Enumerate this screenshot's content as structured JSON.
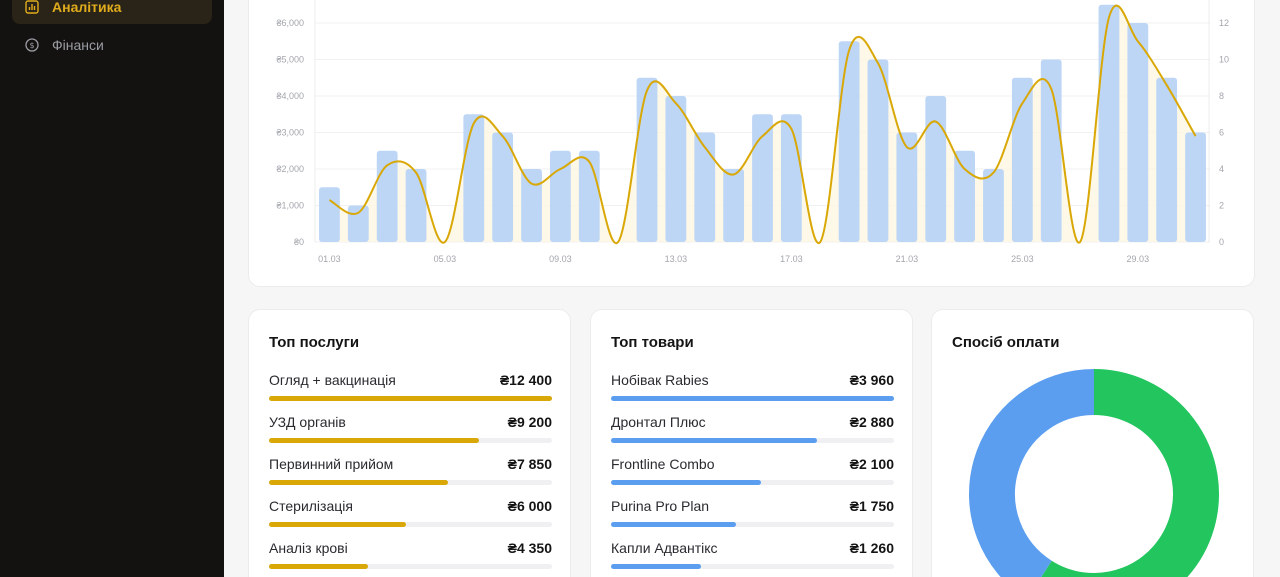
{
  "sidebar": {
    "items": [
      {
        "label": "Аналітика",
        "icon": "bar-chart-icon",
        "active": true
      },
      {
        "label": "Фінанси",
        "icon": "dollar-circle-icon",
        "active": false
      }
    ]
  },
  "colors": {
    "accent": "#e0ac1c",
    "bars": "#b9d4f6",
    "line": "#d9a806",
    "blue": "#5b9ef0",
    "green": "#22c55e"
  },
  "chart_data": [
    {
      "type": "bar",
      "title": "",
      "x": [
        "01.03",
        "02.03",
        "03.03",
        "04.03",
        "05.03",
        "06.03",
        "07.03",
        "08.03",
        "09.03",
        "10.03",
        "11.03",
        "12.03",
        "13.03",
        "14.03",
        "15.03",
        "16.03",
        "17.03",
        "18.03",
        "19.03",
        "20.03",
        "21.03",
        "22.03",
        "23.03",
        "24.03",
        "25.03",
        "26.03",
        "27.03",
        "28.03",
        "29.03",
        "30.03",
        "31.03"
      ],
      "x_tick_labels": [
        "01.03",
        "05.03",
        "09.03",
        "13.03",
        "17.03",
        "21.03",
        "25.03",
        "29.03"
      ],
      "y_ticks_left": [
        "₴0",
        "₴1,000",
        "₴2,000",
        "₴3,000",
        "₴4,000",
        "₴5,000",
        "₴6,000"
      ],
      "y_ticks_right": [
        "0",
        "2",
        "4",
        "6",
        "8",
        "10",
        "12"
      ],
      "ylim_left": [
        0,
        6000
      ],
      "ylim_right": [
        0,
        12
      ],
      "grid": true,
      "series": [
        {
          "axis": "left",
          "type": "bar",
          "values": [
            1500,
            1000,
            2500,
            2000,
            0,
            3500,
            3000,
            2000,
            2500,
            2500,
            0,
            4500,
            4000,
            3000,
            2000,
            3500,
            3500,
            0,
            5500,
            5000,
            3000,
            4000,
            2500,
            2000,
            4500,
            5000,
            0,
            6500,
            6000,
            4500,
            3000
          ]
        },
        {
          "axis": "right",
          "type": "line",
          "values": [
            2.3,
            1.6,
            4.2,
            3.8,
            0,
            6.5,
            5.8,
            3.2,
            4.0,
            4.4,
            0,
            8.3,
            7.6,
            5.2,
            3.7,
            5.8,
            6.2,
            0,
            10.5,
            9.8,
            5.2,
            6.6,
            4.0,
            3.8,
            7.6,
            8.4,
            0,
            12.3,
            11.0,
            8.6,
            5.8
          ]
        }
      ]
    },
    {
      "type": "pie",
      "title": "Спосіб оплати",
      "values": [
        59,
        41
      ],
      "colors": [
        "#22c55e",
        "#5b9ef0"
      ]
    }
  ],
  "services": {
    "title": "Топ послуги",
    "items": [
      {
        "name": "Огляд + вакцинація",
        "value": "₴12 400",
        "fill": 1.0
      },
      {
        "name": "УЗД органів",
        "value": "₴9 200",
        "fill": 0.742
      },
      {
        "name": "Первинний прийом",
        "value": "₴7 850",
        "fill": 0.633
      },
      {
        "name": "Стерилізація",
        "value": "₴6 000",
        "fill": 0.484
      },
      {
        "name": "Аналіз крові",
        "value": "₴4 350",
        "fill": 0.351
      }
    ]
  },
  "products": {
    "title": "Топ товари",
    "items": [
      {
        "name": "Нобівак Rabies",
        "value": "₴3 960",
        "fill": 1.0
      },
      {
        "name": "Дронтал Плюс",
        "value": "₴2 880",
        "fill": 0.727
      },
      {
        "name": "Frontline Combo",
        "value": "₴2 100",
        "fill": 0.53
      },
      {
        "name": "Purina Pro Plan",
        "value": "₴1 750",
        "fill": 0.442
      },
      {
        "name": "Капли Адвантікс",
        "value": "₴1 260",
        "fill": 0.318
      }
    ]
  },
  "payment": {
    "title": "Спосіб оплати"
  }
}
